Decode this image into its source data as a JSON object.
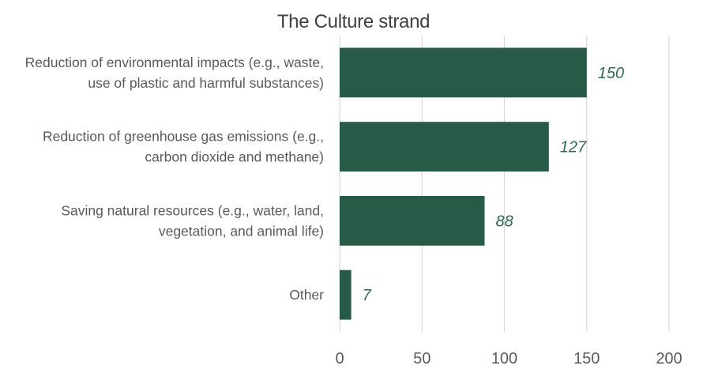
{
  "chart_data": {
    "type": "bar",
    "orientation": "horizontal",
    "title": "The Culture strand",
    "categories": [
      [
        "Reduction of environmental impacts (e.g., waste,",
        "use of plastic and harmful substances)"
      ],
      [
        "Reduction of greenhouse gas emissions (e.g.,",
        "carbon dioxide and methane)"
      ],
      [
        "Saving natural resources (e.g., water, land,",
        "vegetation, and animal life)"
      ],
      [
        "Other"
      ]
    ],
    "values": [
      150,
      127,
      88,
      7
    ],
    "data_labels": [
      "150",
      "127",
      "88",
      "7"
    ],
    "xlim": [
      0,
      200
    ],
    "x_ticks": [
      0,
      50,
      100,
      150,
      200
    ],
    "x_tick_labels": [
      "0",
      "50",
      "100",
      "150",
      "200"
    ],
    "grid": "vertical",
    "legend": "none",
    "colors": {
      "bar": "#275a47",
      "data_label": "#2f6b50",
      "grid": "#d9d9d9",
      "text": "#595959"
    }
  }
}
